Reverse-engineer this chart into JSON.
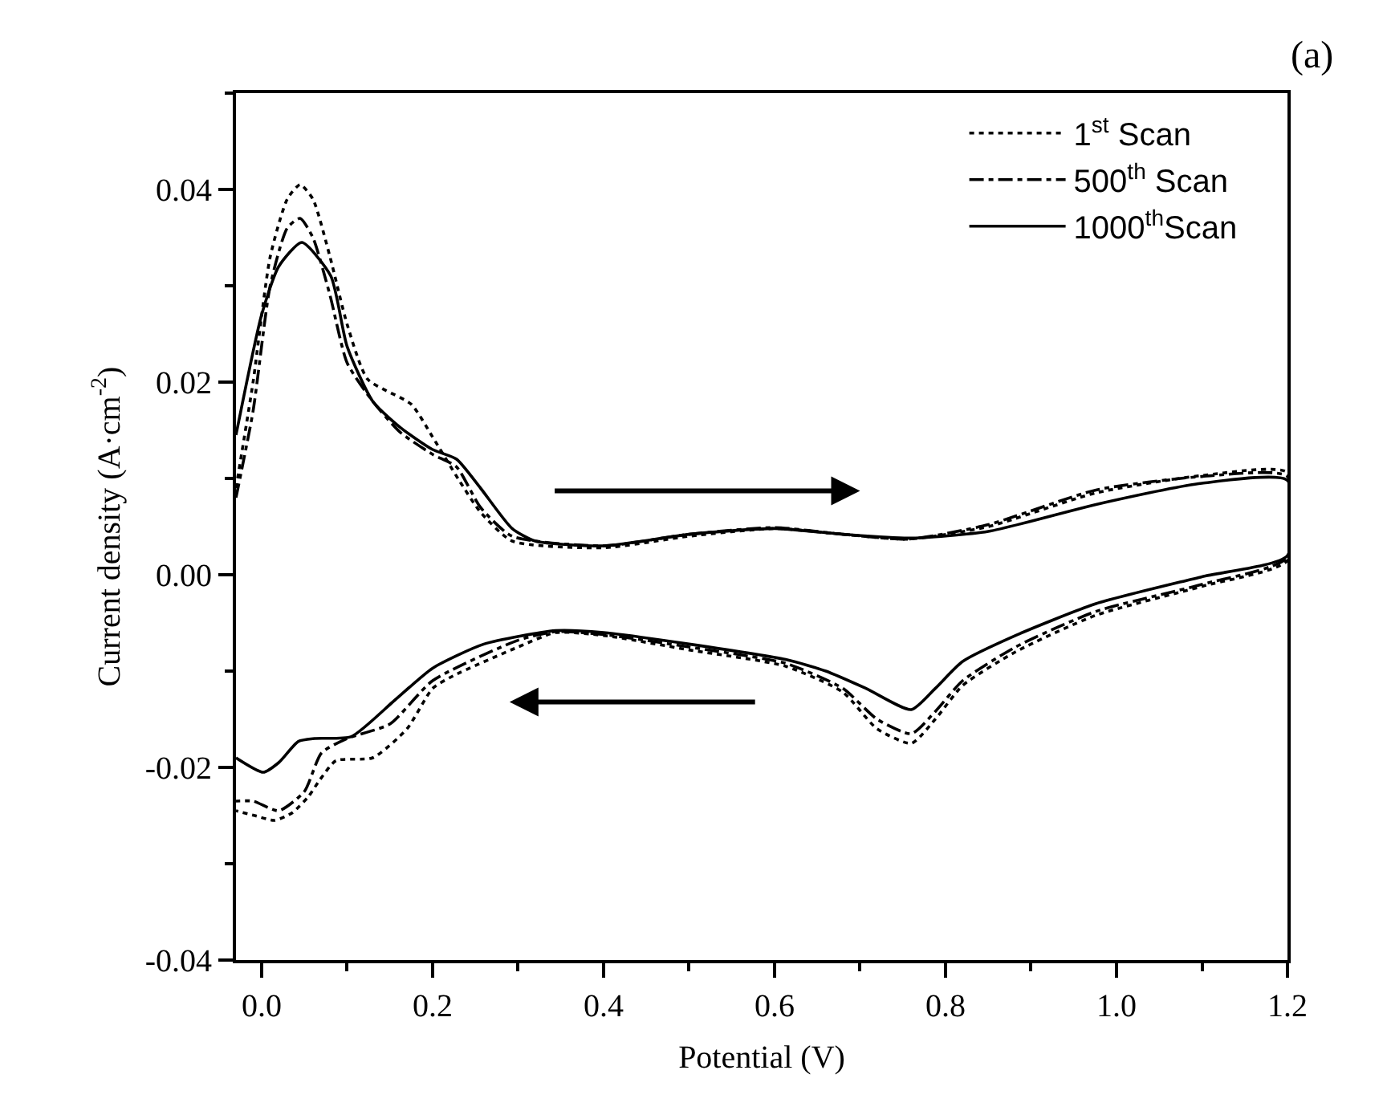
{
  "chart_data": {
    "type": "line",
    "xlabel": "Potential (V)",
    "ylabel": "Current density (A·cm$^{-2}$)",
    "annotations": [
      "(a)"
    ],
    "xlim": [
      -0.03,
      1.2
    ],
    "xticks": [
      {
        "value": 0,
        "label": "0.0"
      },
      0.2,
      0.4,
      0.6,
      0.8,
      {
        "value": 1,
        "label": "1.0"
      },
      1.2
    ],
    "ylim": [
      -0.04,
      0.05
    ],
    "yticks": [
      -0.04,
      -0.02,
      {
        "value": 0,
        "label": "0.00"
      },
      0.02,
      0.04
    ],
    "legend": "top right",
    "marker": "none",
    "series": [
      {
        "name": "1$^{st}$ Scan",
        "color": "#000000",
        "line_style": "dotted",
        "x": [
          -0.03,
          -0.01,
          0.01,
          0.03,
          0.045,
          0.06,
          0.08,
          0.1,
          0.124,
          0.175,
          0.2,
          0.231,
          0.256,
          0.293,
          0.4,
          0.5,
          0.6,
          0.68,
          0.757,
          0.85,
          0.976,
          1.1,
          1.2,
          1.2,
          1.1,
          0.976,
          0.882,
          0.82,
          0.788,
          0.76,
          0.72,
          0.68,
          0.613,
          0.5,
          0.4,
          0.344,
          0.3,
          0.224,
          0.2,
          0.17,
          0.13,
          0.087,
          0.068,
          0.055,
          0.036,
          0.015,
          -0.008,
          -0.03
        ],
        "values": [
          0.009,
          0.02,
          0.033,
          0.039,
          0.0405,
          0.039,
          0.033,
          0.026,
          0.0203,
          0.0177,
          0.0143,
          0.0098,
          0.0065,
          0.0035,
          0.0028,
          0.004,
          0.0048,
          0.0042,
          0.0037,
          0.005,
          0.0085,
          0.0103,
          0.0106,
          0.0015,
          -0.0012,
          -0.0042,
          -0.008,
          -0.0115,
          -0.015,
          -0.0175,
          -0.016,
          -0.0122,
          -0.0095,
          -0.0078,
          -0.0063,
          -0.006,
          -0.0075,
          -0.0105,
          -0.0118,
          -0.016,
          -0.019,
          -0.0193,
          -0.0213,
          -0.023,
          -0.0247,
          -0.0255,
          -0.025,
          -0.0245
        ]
      },
      {
        "name": "500$^{th}$ Scan",
        "color": "#000000",
        "line_style": "dashed",
        "x": [
          -0.03,
          -0.01,
          0.01,
          0.03,
          0.045,
          0.06,
          0.08,
          0.1,
          0.13,
          0.162,
          0.2,
          0.228,
          0.256,
          0.293,
          0.4,
          0.5,
          0.6,
          0.68,
          0.757,
          0.85,
          0.976,
          1.1,
          1.2,
          1.2,
          1.1,
          0.976,
          0.882,
          0.82,
          0.788,
          0.76,
          0.72,
          0.68,
          0.613,
          0.5,
          0.4,
          0.344,
          0.3,
          0.2,
          0.15,
          0.1,
          0.07,
          0.05,
          0.02,
          -0.01,
          -0.03
        ],
        "values": [
          0.008,
          0.017,
          0.03,
          0.036,
          0.037,
          0.035,
          0.029,
          0.022,
          0.018,
          0.0148,
          0.0125,
          0.0112,
          0.007,
          0.004,
          0.003,
          0.0042,
          0.0049,
          0.0042,
          0.0037,
          0.0052,
          0.0088,
          0.0102,
          0.0102,
          0.0018,
          -0.001,
          -0.0038,
          -0.0075,
          -0.011,
          -0.0142,
          -0.0165,
          -0.015,
          -0.0118,
          -0.0092,
          -0.0075,
          -0.0062,
          -0.0059,
          -0.0068,
          -0.011,
          -0.0155,
          -0.017,
          -0.0185,
          -0.0225,
          -0.0245,
          -0.0235,
          -0.0235
        ]
      },
      {
        "name": "1000$^{th}$Scan",
        "color": "#000000",
        "line_style": "solid",
        "x": [
          -0.03,
          0.0,
          0.02,
          0.047,
          0.081,
          0.1,
          0.13,
          0.162,
          0.2,
          0.228,
          0.256,
          0.293,
          0.32,
          0.4,
          0.5,
          0.6,
          0.68,
          0.757,
          0.85,
          0.976,
          1.1,
          1.2,
          1.2,
          1.1,
          0.976,
          0.882,
          0.82,
          0.788,
          0.76,
          0.707,
          0.66,
          0.613,
          0.5,
          0.4,
          0.344,
          0.26,
          0.2,
          0.156,
          0.105,
          0.062,
          0.043,
          0.02,
          0.002,
          -0.03
        ],
        "values": [
          0.0145,
          0.027,
          0.032,
          0.0345,
          0.031,
          0.0237,
          0.018,
          0.0153,
          0.013,
          0.012,
          0.009,
          0.0048,
          0.0035,
          0.003,
          0.0042,
          0.0048,
          0.0042,
          0.0038,
          0.0045,
          0.0073,
          0.0095,
          0.0098,
          0.002,
          -0.0002,
          -0.003,
          -0.0063,
          -0.009,
          -0.0118,
          -0.014,
          -0.0118,
          -0.01,
          -0.0088,
          -0.0072,
          -0.006,
          -0.0058,
          -0.0072,
          -0.0097,
          -0.013,
          -0.0168,
          -0.017,
          -0.0173,
          -0.0195,
          -0.0205,
          -0.019
        ]
      }
    ]
  }
}
